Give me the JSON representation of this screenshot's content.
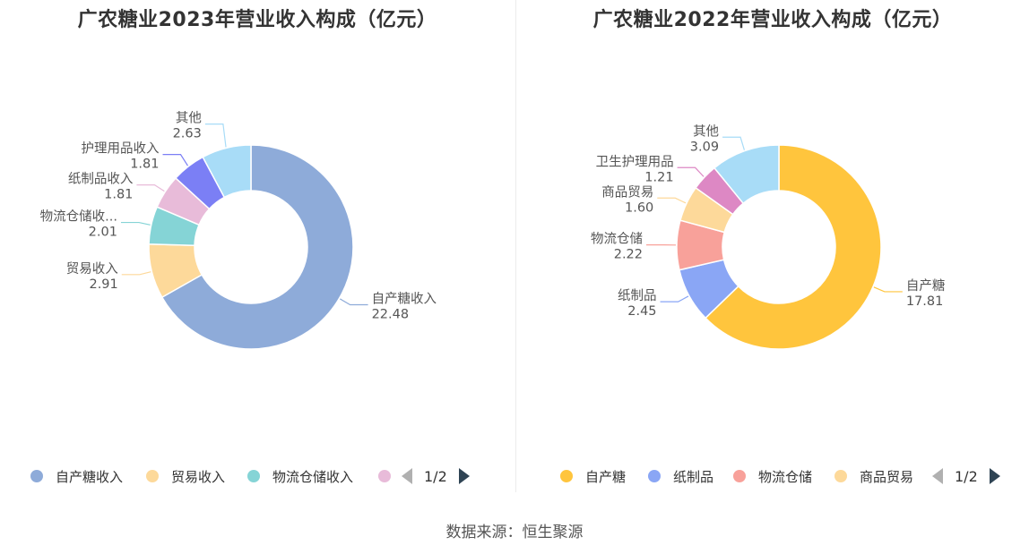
{
  "chart_data": [
    {
      "type": "pie",
      "title": "广农糖业2023年营业收入构成（亿元）",
      "slices": [
        {
          "name": "自产糖收入",
          "label_name": "自产糖收入",
          "value": 22.48,
          "value_label": "22.48",
          "color": "#8eabd9"
        },
        {
          "name": "贸易收入",
          "label_name": "贸易收入",
          "value": 2.91,
          "value_label": "2.91",
          "color": "#fdd99a"
        },
        {
          "name": "物流仓储收入",
          "label_name": "物流仓储收...",
          "value": 2.01,
          "value_label": "2.01",
          "color": "#85d4d6"
        },
        {
          "name": "纸制品收入",
          "label_name": "纸制品收入",
          "value": 1.81,
          "value_label": "1.81",
          "color": "#e8bbd9"
        },
        {
          "name": "护理用品收入",
          "label_name": "护理用品收入",
          "value": 1.81,
          "value_label": "1.81",
          "color": "#7b7ff5"
        },
        {
          "name": "其他",
          "label_name": "其他",
          "value": 2.63,
          "value_label": "2.63",
          "color": "#a8dcf7"
        }
      ],
      "legend": {
        "position": "bottom",
        "visible_items": [
          "自产糖收入",
          "贸易收入",
          "物流仓储收入"
        ],
        "page": "1/2"
      }
    },
    {
      "type": "pie",
      "title": "广农糖业2022年营业收入构成（亿元）",
      "slices": [
        {
          "name": "自产糖",
          "label_name": "自产糖",
          "value": 17.81,
          "value_label": "17.81",
          "color": "#ffc53d"
        },
        {
          "name": "纸制品",
          "label_name": "纸制品",
          "value": 2.45,
          "value_label": "2.45",
          "color": "#8aa6f5"
        },
        {
          "name": "物流仓储",
          "label_name": "物流仓储",
          "value": 2.22,
          "value_label": "2.22",
          "color": "#f8a19a"
        },
        {
          "name": "商品贸易",
          "label_name": "商品贸易",
          "value": 1.6,
          "value_label": "1.60",
          "color": "#fdd99a"
        },
        {
          "name": "卫生护理用品",
          "label_name": "卫生护理用品",
          "value": 1.21,
          "value_label": "1.21",
          "color": "#dd88c4"
        },
        {
          "name": "其他",
          "label_name": "其他",
          "value": 3.09,
          "value_label": "3.09",
          "color": "#a8dcf7"
        }
      ],
      "legend": {
        "position": "bottom",
        "visible_items": [
          "自产糖",
          "纸制品",
          "物流仓储",
          "商品贸易"
        ],
        "page": "1/2"
      }
    }
  ],
  "source": "数据来源：恒生聚源"
}
